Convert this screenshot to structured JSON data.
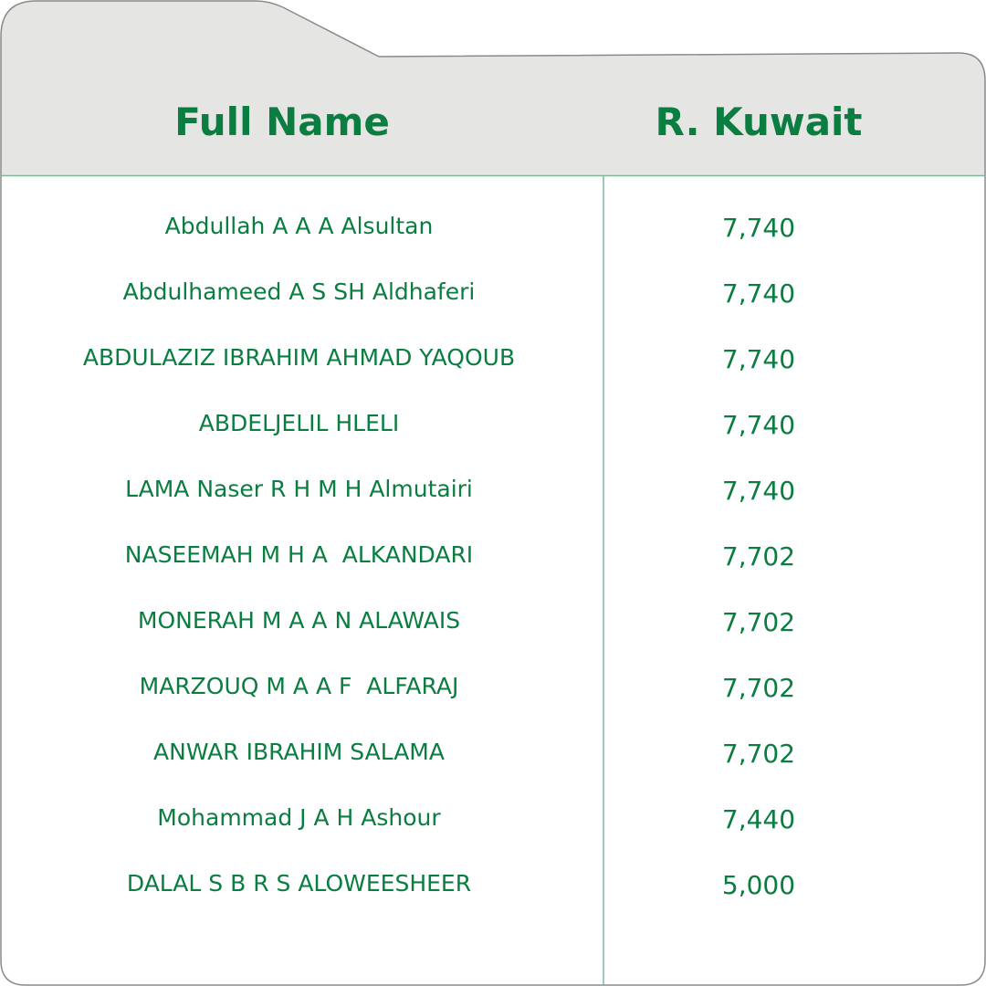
{
  "colors": {
    "accent": "#0a7d40",
    "header_bg": "#e5e5e3"
  },
  "table": {
    "headers": [
      "Full Name",
      "R. Kuwait"
    ],
    "rows": [
      {
        "name": "Abdullah A A A Alsultan",
        "value": "7,740"
      },
      {
        "name": "Abdulhameed A S SH Aldhaferi",
        "value": "7,740"
      },
      {
        "name": "ABDULAZIZ IBRAHIM AHMAD YAQOUB",
        "value": "7,740"
      },
      {
        "name": "ABDELJELIL HLELI",
        "value": "7,740"
      },
      {
        "name": "LAMA Naser R H M H Almutairi",
        "value": "7,740"
      },
      {
        "name": "NASEEMAH M H A  ALKANDARI",
        "value": "7,702"
      },
      {
        "name": "MONERAH M A A N ALAWAIS",
        "value": "7,702"
      },
      {
        "name": "MARZOUQ M A A F  ALFARAJ",
        "value": "7,702"
      },
      {
        "name": "ANWAR IBRAHIM SALAMA",
        "value": "7,702"
      },
      {
        "name": "Mohammad J A H Ashour",
        "value": "7,440"
      },
      {
        "name": "DALAL S B R S ALOWEESHEER",
        "value": "5,000"
      }
    ]
  }
}
